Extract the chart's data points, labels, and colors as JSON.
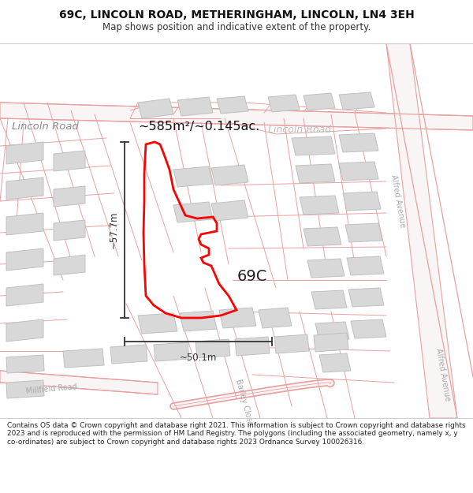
{
  "title_line1": "69C, LINCOLN ROAD, METHERINGHAM, LINCOLN, LN4 3EH",
  "title_line2": "Map shows position and indicative extent of the property.",
  "area_text": "~585m²/~0.145ac.",
  "road_label_left": "Lincoln Road",
  "road_label_right": "Lincoln Road",
  "label_69c": "69C",
  "dim_vertical": "~57.7m",
  "dim_horizontal": "~50.1m",
  "street_label_barley": "Barley Close",
  "street_label_millfield": "Millfield Road",
  "street_label_alfred1": "Alfred Avenue",
  "street_label_alfred2": "Alfred Avenue",
  "footer_text": "Contains OS data © Crown copyright and database right 2021. This information is subject to Crown copyright and database rights 2023 and is reproduced with the permission of HM Land Registry. The polygons (including the associated geometry, namely x, y co-ordinates) are subject to Crown copyright and database rights 2023 Ordnance Survey 100026316.",
  "map_bg": "#ffffff",
  "road_line_color": "#e8a0a0",
  "road_fill_color": "#f5e8e8",
  "building_fill": "#d8d8d8",
  "building_edge": "#c0c0c0",
  "highlight_color": "#ff0000",
  "dim_color": "#333333",
  "label_color": "#555555",
  "title_bg": "#ffffff",
  "separator_color": "#cccccc"
}
